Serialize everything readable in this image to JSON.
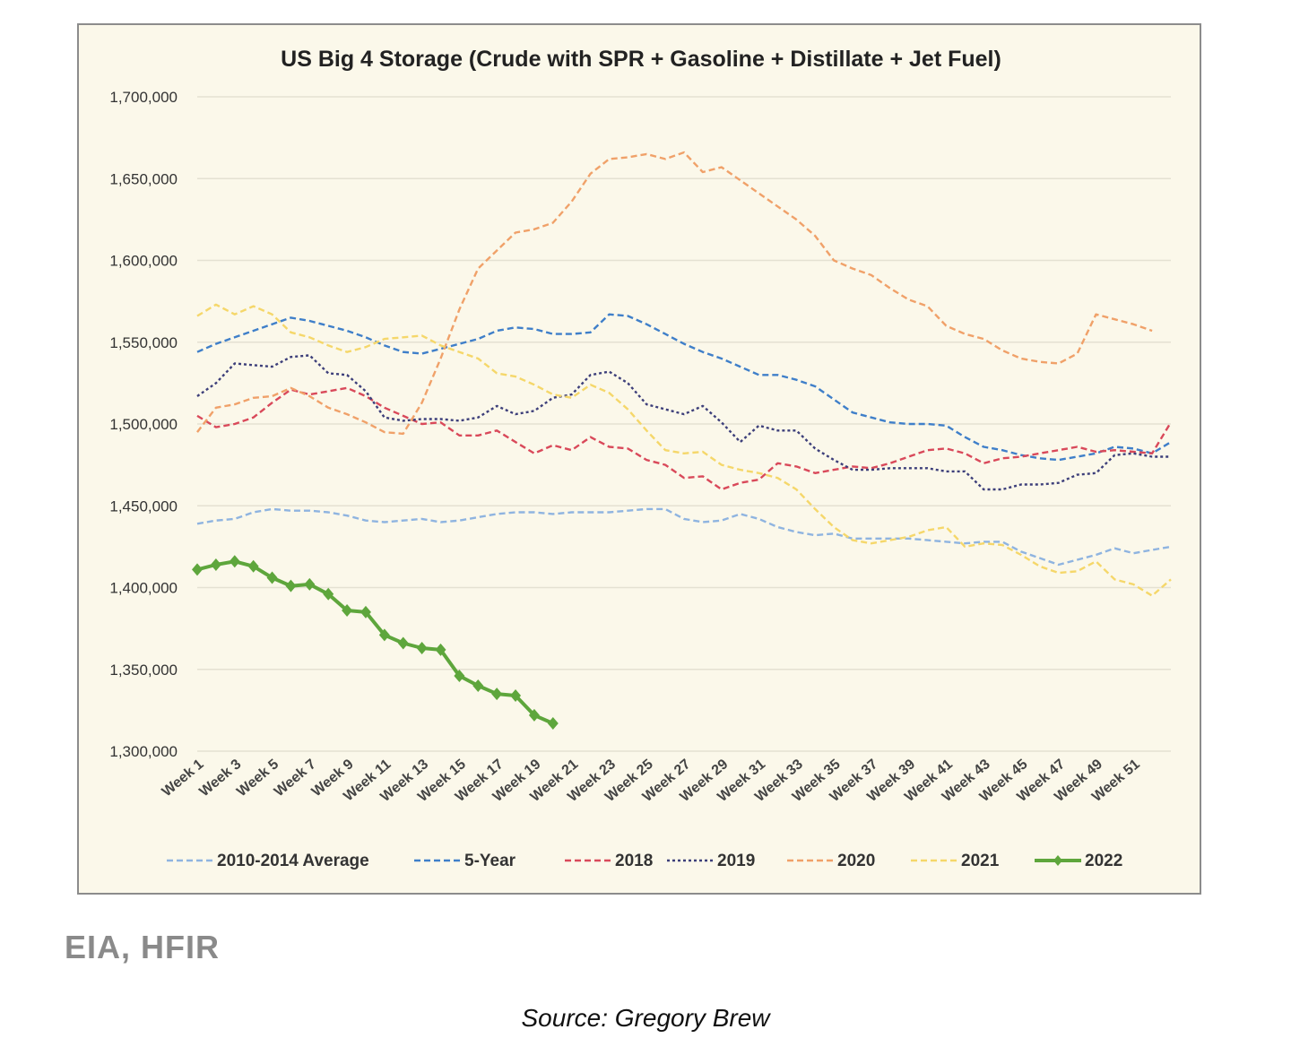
{
  "credit_text": "EIA, HFIR",
  "source_text": "Source: Gregory Brew",
  "chart_data": {
    "type": "line",
    "title": "US Big 4 Storage (Crude with SPR + Gasoline + Distillate + Jet Fuel)",
    "xlabel": "",
    "ylabel": "",
    "ylim": [
      1300000,
      1700000
    ],
    "grid": true,
    "legend_position": "bottom",
    "x_labels": [
      "Week 1",
      "Week 3",
      "Week 5",
      "Week 7",
      "Week 9",
      "Week 11",
      "Week 13",
      "Week 15",
      "Week 17",
      "Week 19",
      "Week 21",
      "Week 23",
      "Week 25",
      "Week 27",
      "Week 29",
      "Week 31",
      "Week 33",
      "Week 35",
      "Week 37",
      "Week 39",
      "Week 41",
      "Week 43",
      "Week 45",
      "Week 47",
      "Week 49",
      "Week 51"
    ],
    "y_ticks": [
      {
        "value": 1300000,
        "label": "1,300,000"
      },
      {
        "value": 1350000,
        "label": "1,350,000"
      },
      {
        "value": 1400000,
        "label": "1,400,000"
      },
      {
        "value": 1450000,
        "label": "1,450,000"
      },
      {
        "value": 1500000,
        "label": "1,500,000"
      },
      {
        "value": 1550000,
        "label": "1,550,000"
      },
      {
        "value": 1600000,
        "label": "1,600,000"
      },
      {
        "value": 1650000,
        "label": "1,650,000"
      },
      {
        "value": 1700000,
        "label": "1,700,000"
      }
    ],
    "series": [
      {
        "name": "2010-2014 Average",
        "color": "#8fb4e0",
        "style": "dashed",
        "values": [
          1439000,
          1441000,
          1442000,
          1446000,
          1448000,
          1447000,
          1447000,
          1446000,
          1444000,
          1441000,
          1440000,
          1441000,
          1442000,
          1440000,
          1441000,
          1443000,
          1445000,
          1446000,
          1446000,
          1445000,
          1446000,
          1446000,
          1446000,
          1447000,
          1448000,
          1448000,
          1442000,
          1440000,
          1441000,
          1445000,
          1442000,
          1437000,
          1434000,
          1432000,
          1433000,
          1430000,
          1430000,
          1430000,
          1430000,
          1429000,
          1428000,
          1427000,
          1428000,
          1428000,
          1422000,
          1418000,
          1414000,
          1417000,
          1420000,
          1424000,
          1421000,
          1423000,
          1425000
        ]
      },
      {
        "name": "5-Year",
        "color": "#3f7fc9",
        "style": "dashed",
        "values": [
          1544000,
          1549000,
          1553000,
          1557000,
          1561000,
          1565000,
          1563000,
          1560000,
          1557000,
          1553000,
          1548000,
          1544000,
          1543000,
          1546000,
          1549000,
          1552000,
          1557000,
          1559000,
          1558000,
          1555000,
          1555000,
          1556000,
          1567000,
          1566000,
          1561000,
          1555000,
          1549000,
          1544000,
          1540000,
          1535000,
          1530000,
          1530000,
          1527000,
          1523000,
          1515000,
          1507000,
          1504000,
          1501000,
          1500000,
          1500000,
          1499000,
          1492000,
          1486000,
          1484000,
          1481000,
          1479000,
          1478000,
          1480000,
          1482000,
          1486000,
          1485000,
          1482000,
          1489000
        ]
      },
      {
        "name": "2018",
        "color": "#d9495a",
        "style": "dashed",
        "values": [
          1505000,
          1498000,
          1500000,
          1504000,
          1513000,
          1521000,
          1518000,
          1520000,
          1522000,
          1517000,
          1510000,
          1505000,
          1500000,
          1501000,
          1493000,
          1493000,
          1496000,
          1489000,
          1482000,
          1487000,
          1484000,
          1492000,
          1486000,
          1485000,
          1478000,
          1475000,
          1467000,
          1468000,
          1460000,
          1464000,
          1466000,
          1476000,
          1474000,
          1470000,
          1472000,
          1474000,
          1473000,
          1476000,
          1480000,
          1484000,
          1485000,
          1482000,
          1476000,
          1479000,
          1480000,
          1482000,
          1484000,
          1486000,
          1483000,
          1484000,
          1483000,
          1482000,
          1501000
        ]
      },
      {
        "name": "2019",
        "color": "#3d3f7a",
        "style": "dotted",
        "values": [
          1517000,
          1525000,
          1537000,
          1536000,
          1535000,
          1541000,
          1542000,
          1531000,
          1530000,
          1520000,
          1504000,
          1502000,
          1503000,
          1503000,
          1502000,
          1504000,
          1511000,
          1506000,
          1508000,
          1516000,
          1518000,
          1530000,
          1532000,
          1525000,
          1512000,
          1509000,
          1506000,
          1511000,
          1501000,
          1489000,
          1499000,
          1496000,
          1496000,
          1485000,
          1478000,
          1472000,
          1472000,
          1473000,
          1473000,
          1473000,
          1471000,
          1471000,
          1460000,
          1460000,
          1463000,
          1463000,
          1464000,
          1469000,
          1470000,
          1481000,
          1482000,
          1480000,
          1480000
        ]
      },
      {
        "name": "2020",
        "color": "#f0a169",
        "style": "dashed",
        "values": [
          1495000,
          1510000,
          1512000,
          1516000,
          1517000,
          1522000,
          1517000,
          1510000,
          1506000,
          1501000,
          1495000,
          1494000,
          1513000,
          1540000,
          1570000,
          1595000,
          1606000,
          1617000,
          1619000,
          1623000,
          1636000,
          1653000,
          1662000,
          1663000,
          1665000,
          1662000,
          1666000,
          1654000,
          1657000,
          1649000,
          1641000,
          1633000,
          1625000,
          1615000,
          1600000,
          1595000,
          1591000,
          1583000,
          1576000,
          1572000,
          1560000,
          1555000,
          1552000,
          1545000,
          1540000,
          1538000,
          1537000,
          1543000,
          1567000,
          1564000,
          1561000,
          1557000
        ]
      },
      {
        "name": "2021",
        "color": "#f5d76a",
        "style": "dashed",
        "values": [
          1566000,
          1573000,
          1567000,
          1572000,
          1567000,
          1556000,
          1553000,
          1548000,
          1544000,
          1547000,
          1552000,
          1553000,
          1554000,
          1548000,
          1544000,
          1540000,
          1531000,
          1529000,
          1524000,
          1518000,
          1516000,
          1524000,
          1519000,
          1509000,
          1496000,
          1484000,
          1482000,
          1483000,
          1475000,
          1472000,
          1470000,
          1467000,
          1460000,
          1448000,
          1437000,
          1429000,
          1427000,
          1429000,
          1431000,
          1435000,
          1437000,
          1425000,
          1427000,
          1426000,
          1420000,
          1413000,
          1409000,
          1410000,
          1416000,
          1405000,
          1402000,
          1395000,
          1405000
        ]
      },
      {
        "name": "2022",
        "color": "#5ea63c",
        "style": "solid-markers",
        "values": [
          1411000,
          1414000,
          1416000,
          1413000,
          1406000,
          1401000,
          1402000,
          1396000,
          1386000,
          1385000,
          1371000,
          1366000,
          1363000,
          1362000,
          1346000,
          1340000,
          1335000,
          1334000,
          1322000,
          1317000
        ]
      }
    ]
  }
}
